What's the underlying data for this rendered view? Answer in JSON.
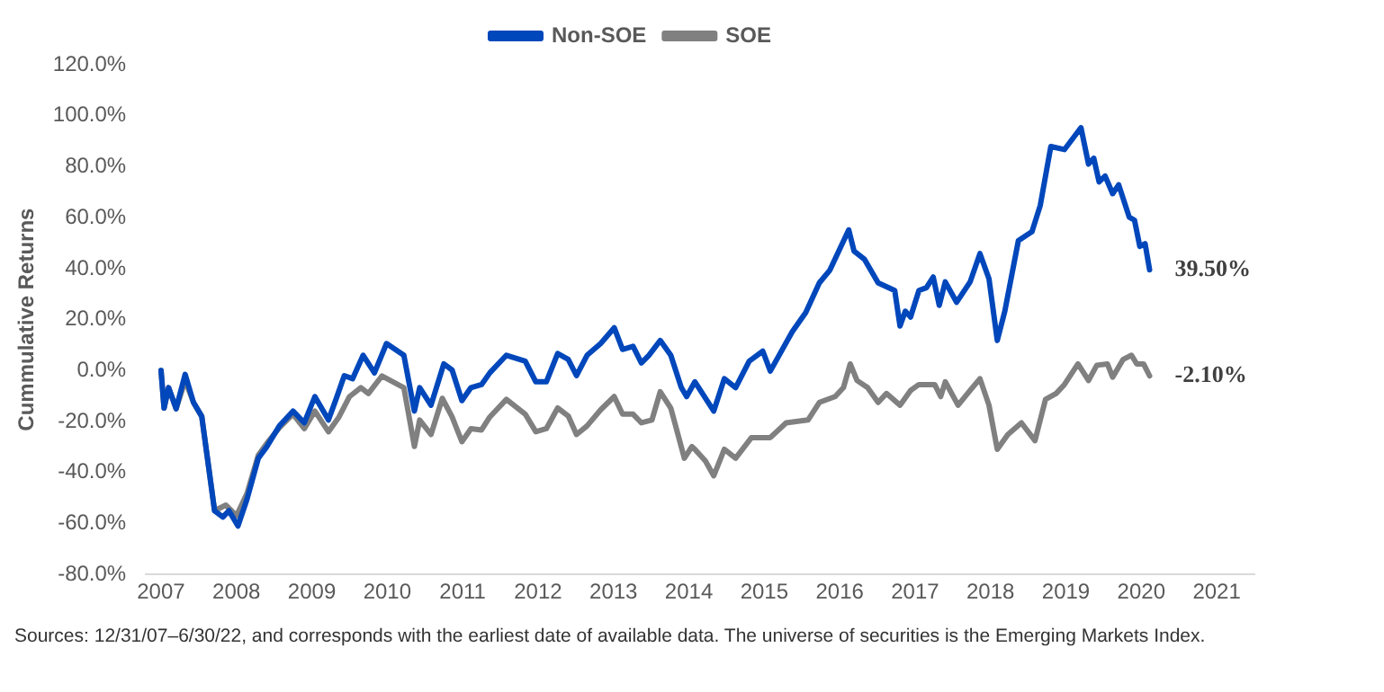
{
  "chart_data": {
    "type": "line",
    "ylabel": "Cummulative Returns",
    "legend": "top",
    "grid": false,
    "marker": "none",
    "line_style": "solid",
    "xlim": [
      2006.8,
      2021.5
    ],
    "xticks": [
      2007,
      2008,
      2009,
      2010,
      2011,
      2012,
      2013,
      2014,
      2015,
      2016,
      2017,
      2018,
      2019,
      2020,
      2021
    ],
    "ylim": [
      -80,
      120
    ],
    "yticks": [
      {
        "value": -80,
        "label": "-80.0%"
      },
      {
        "value": -60,
        "label": "-60.0%"
      },
      {
        "value": -40,
        "label": "-40.0%"
      },
      {
        "value": -20,
        "label": "-20.0%"
      },
      {
        "value": 0,
        "label": "0.0%"
      },
      {
        "value": 20,
        "label": "20.0%"
      },
      {
        "value": 40,
        "label": "40.0%"
      },
      {
        "value": 60,
        "label": "60.0%"
      },
      {
        "value": 80,
        "label": "80.0%"
      },
      {
        "value": 100,
        "label": "100.0%"
      },
      {
        "value": 120,
        "label": "120.0%"
      }
    ],
    "series": [
      {
        "name": "Non-SOE",
        "color": "#0047bb",
        "x": [
          2007.0,
          2007.04,
          2007.1,
          2007.2,
          2007.32,
          2007.43,
          2007.54,
          2007.71,
          2007.82,
          2007.9,
          2008.02,
          2008.14,
          2008.29,
          2008.4,
          2008.57,
          2008.75,
          2008.9,
          2009.04,
          2009.22,
          2009.32,
          2009.43,
          2009.54,
          2009.68,
          2009.83,
          2009.99,
          2010.22,
          2010.36,
          2010.43,
          2010.58,
          2010.75,
          2010.86,
          2010.99,
          2011.11,
          2011.25,
          2011.36,
          2011.58,
          2011.83,
          2011.97,
          2012.11,
          2012.26,
          2012.4,
          2012.51,
          2012.65,
          2012.83,
          2013.01,
          2013.12,
          2013.26,
          2013.37,
          2013.47,
          2013.62,
          2013.76,
          2013.9,
          2013.97,
          2014.08,
          2014.33,
          2014.47,
          2014.62,
          2014.8,
          2014.98,
          2015.08,
          2015.37,
          2015.55,
          2015.73,
          2015.87,
          2016.12,
          2016.19,
          2016.33,
          2016.51,
          2016.73,
          2016.8,
          2016.87,
          2016.94,
          2017.05,
          2017.15,
          2017.24,
          2017.32,
          2017.4,
          2017.55,
          2017.73,
          2017.86,
          2017.98,
          2018.09,
          2018.19,
          2018.37,
          2018.55,
          2018.66,
          2018.8,
          2018.98,
          2019.2,
          2019.3,
          2019.37,
          2019.44,
          2019.52,
          2019.62,
          2019.7,
          2019.84,
          2019.91,
          2019.98,
          2020.05,
          2020.11
        ],
        "values": [
          0,
          -14.7,
          -6.7,
          -15,
          -1.5,
          -12.5,
          -18,
          -55,
          -57.5,
          -55,
          -61,
          -50.5,
          -34.4,
          -30,
          -21.7,
          -15.9,
          -20.5,
          -10.2,
          -19.4,
          -11.3,
          -2,
          -3.2,
          6,
          -0.9,
          10.6,
          6,
          -15.9,
          -6.7,
          -13.6,
          2.6,
          0.2,
          -11.8,
          -6.7,
          -5.5,
          -0.9,
          6,
          3.7,
          -4.4,
          -4.4,
          6.7,
          4.4,
          -2,
          6,
          10.6,
          16.8,
          8.3,
          9.5,
          3,
          6,
          11.8,
          6,
          -6.7,
          -10.2,
          -4.4,
          -15.9,
          -3.2,
          -6.7,
          3.7,
          7.6,
          -0.2,
          15.2,
          22.8,
          34.4,
          39.4,
          55.2,
          46.9,
          43.6,
          34.4,
          31.4,
          17.5,
          23.3,
          21,
          31.4,
          32.5,
          36.7,
          25.6,
          34.8,
          26.8,
          34.8,
          45.9,
          36,
          11.8,
          23.3,
          51,
          54.5,
          64.8,
          87.9,
          86.7,
          95.3,
          81,
          83.3,
          74,
          76.3,
          69.4,
          72.9,
          60.2,
          59,
          48.7,
          49.8,
          39.5
        ]
      },
      {
        "name": "SOE",
        "color": "#808080",
        "x": [
          2007.0,
          2007.04,
          2007.1,
          2007.2,
          2007.32,
          2007.43,
          2007.54,
          2007.71,
          2007.86,
          2008.0,
          2008.14,
          2008.29,
          2008.43,
          2008.57,
          2008.75,
          2008.9,
          2009.04,
          2009.22,
          2009.36,
          2009.5,
          2009.65,
          2009.75,
          2009.93,
          2010.22,
          2010.36,
          2010.43,
          2010.58,
          2010.73,
          2010.86,
          2010.99,
          2011.11,
          2011.25,
          2011.36,
          2011.58,
          2011.83,
          2011.97,
          2012.11,
          2012.26,
          2012.4,
          2012.51,
          2012.65,
          2012.83,
          2013.01,
          2013.12,
          2013.26,
          2013.37,
          2013.51,
          2013.62,
          2013.76,
          2013.94,
          2014.04,
          2014.08,
          2014.22,
          2014.33,
          2014.47,
          2014.62,
          2014.83,
          2015.08,
          2015.29,
          2015.58,
          2015.73,
          2015.94,
          2016.05,
          2016.14,
          2016.23,
          2016.37,
          2016.51,
          2016.62,
          2016.8,
          2016.94,
          2017.05,
          2017.26,
          2017.34,
          2017.4,
          2017.57,
          2017.73,
          2017.86,
          2017.98,
          2018.09,
          2018.23,
          2018.41,
          2018.59,
          2018.73,
          2018.87,
          2018.98,
          2019.16,
          2019.3,
          2019.41,
          2019.55,
          2019.62,
          2019.76,
          2019.87,
          2019.94,
          2020.03,
          2020.11
        ],
        "values": [
          0,
          -14.7,
          -6.7,
          -15,
          -3.9,
          -12.5,
          -18,
          -55,
          -52.8,
          -57,
          -48.2,
          -33.2,
          -27.5,
          -22.4,
          -17.1,
          -22.8,
          -15.9,
          -24,
          -18.2,
          -10.2,
          -6.7,
          -9,
          -2.1,
          -6.7,
          -29.8,
          -19.4,
          -25.1,
          -10.9,
          -18.2,
          -27.9,
          -22.8,
          -23.3,
          -18.2,
          -11.3,
          -17.1,
          -24,
          -22.8,
          -14.7,
          -17.8,
          -25.1,
          -21.7,
          -15.4,
          -10.2,
          -17.1,
          -17.1,
          -20.5,
          -19.4,
          -8.3,
          -14.7,
          -34.4,
          -29.8,
          -30.9,
          -35.5,
          -41.3,
          -30.9,
          -34.4,
          -26.3,
          -26.3,
          -20.5,
          -19.4,
          -12.5,
          -10.2,
          -6.7,
          2.6,
          -3.9,
          -6.7,
          -12.5,
          -9,
          -13.6,
          -7.8,
          -5.5,
          -5.5,
          -10.2,
          -4.4,
          -13.6,
          -7.8,
          -3.2,
          -13.6,
          -30.9,
          -25.1,
          -20.5,
          -27.5,
          -11.3,
          -9,
          -5.5,
          2.6,
          -3.9,
          2.1,
          2.6,
          -2.6,
          4.4,
          6,
          2.6,
          2.6,
          -2.1
        ]
      }
    ],
    "annotations": [
      {
        "text": "39.50%",
        "x": 2020.11,
        "y": 39.5
      },
      {
        "text": "-2.10%",
        "x": 2020.11,
        "y": -2.1
      },
      "Sources: 12/31/07–6/30/22, and corresponds with the earliest date of available data. The universe of securities is the Emerging Markets Index."
    ]
  }
}
